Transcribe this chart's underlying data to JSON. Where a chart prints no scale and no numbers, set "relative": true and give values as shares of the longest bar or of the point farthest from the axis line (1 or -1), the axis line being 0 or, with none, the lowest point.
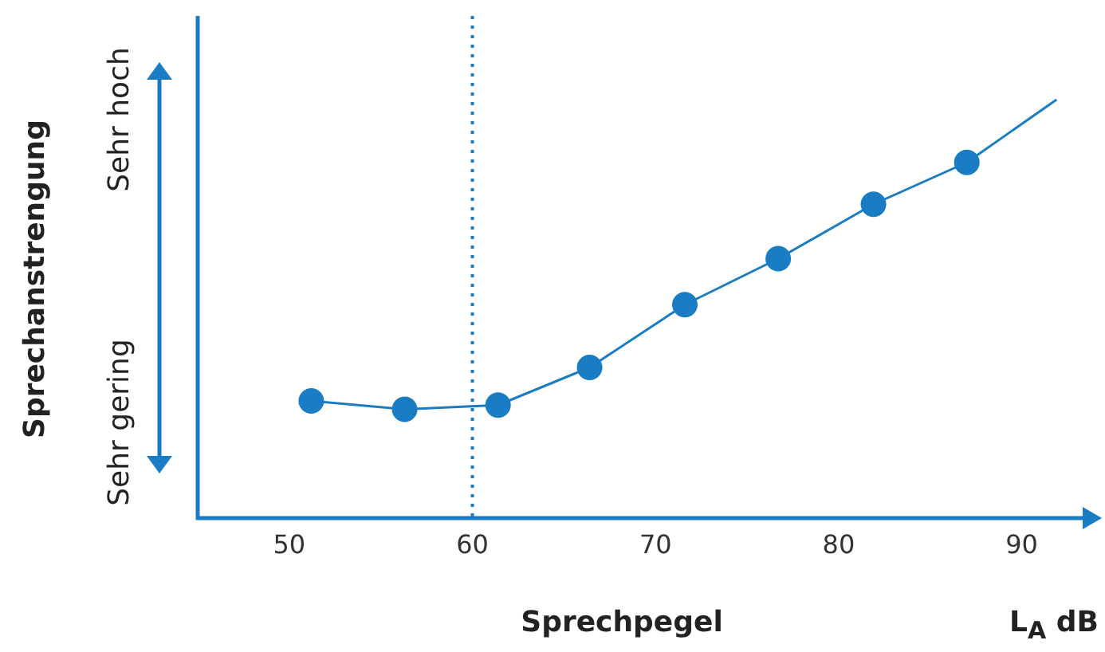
{
  "chart_data": {
    "type": "line",
    "xlabel": "Sprechpegel",
    "relative": true,
    "xlim": [
      45,
      93.5
    ],
    "xticks": [
      50,
      60,
      70,
      80,
      90
    ],
    "grid": false,
    "legend": false,
    "series": [
      {
        "color": "#1a7dc4",
        "marker": "circle",
        "line_style": "solid",
        "x": [
          51.2,
          56.3,
          61.4,
          66.4,
          71.6,
          76.7,
          81.9,
          87.0
        ],
        "values": [
          0.28,
          0.26,
          0.27,
          0.36,
          0.51,
          0.62,
          0.75,
          0.85
        ]
      },
      {
        "color": "#1a7dc4",
        "marker": "none",
        "line_style": "solid",
        "x": [
          87.0,
          91.9
        ],
        "values": [
          0.85,
          1.0
        ]
      }
    ],
    "ref_lines": [
      {
        "axis": "x",
        "value": 60,
        "color": "#1a7dc4",
        "line_style": "dotted"
      }
    ],
    "annotations": [
      "Sehr hoch",
      "Sehr gering",
      "L$_{A}$ dB",
      "Sprechanstrengung"
    ]
  }
}
